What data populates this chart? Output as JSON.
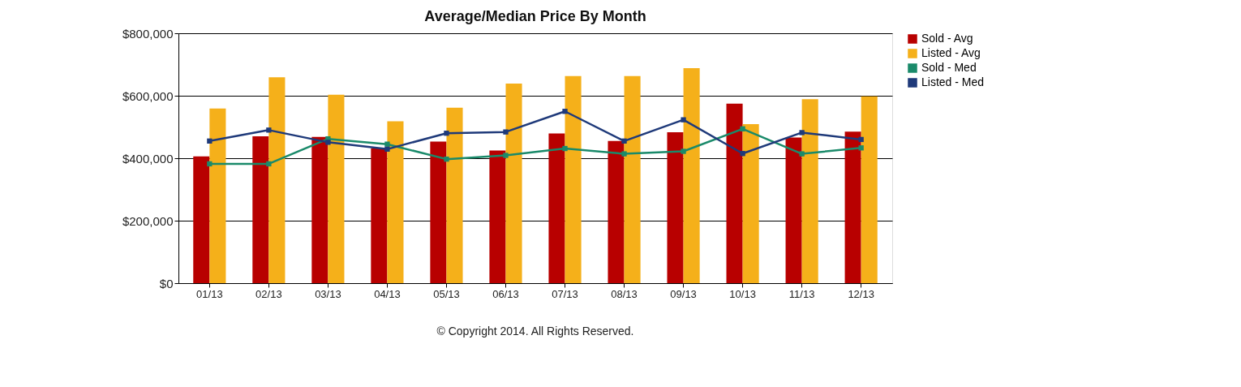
{
  "chart_data": {
    "type": "bar",
    "title": "Average/Median Price By Month",
    "categories": [
      "01/13",
      "02/13",
      "03/13",
      "04/13",
      "05/13",
      "06/13",
      "07/13",
      "08/13",
      "09/13",
      "10/13",
      "11/13",
      "12/13"
    ],
    "series": [
      {
        "name": "Sold - Avg",
        "color": "#b80000",
        "values": [
          406000,
          470000,
          468000,
          432000,
          453000,
          425000,
          479000,
          455000,
          483000,
          575000,
          466000,
          485000
        ]
      },
      {
        "name": "Listed - Avg",
        "color": "#f5b01a",
        "values": [
          559000,
          659000,
          603000,
          518000,
          562000,
          639000,
          663000,
          663000,
          688000,
          509000,
          589000,
          598000
        ]
      },
      {
        "name": "Sold - Med",
        "type": "line",
        "color": "#1a8a6a",
        "values": [
          382000,
          382000,
          462000,
          445000,
          397000,
          409000,
          431000,
          414000,
          422000,
          494000,
          414000,
          433000
        ]
      },
      {
        "name": "Listed - Med",
        "type": "line",
        "color": "#1f3a7a",
        "values": [
          455000,
          490000,
          451000,
          429000,
          480000,
          484000,
          550000,
          455000,
          523000,
          415000,
          482000,
          460000
        ]
      }
    ],
    "ylim": [
      0,
      800000
    ],
    "yticks": [
      {
        "value": 0,
        "label": "$0"
      },
      {
        "value": 200000,
        "label": "$200,000"
      },
      {
        "value": 400000,
        "label": "$400,000"
      },
      {
        "value": 600000,
        "label": "$600,000"
      },
      {
        "value": 800000,
        "label": "$800,000"
      }
    ],
    "grid": "y",
    "legend": "top right",
    "marker": "square",
    "annotations": [
      "© Copyright 2014.  All Rights Reserved."
    ]
  }
}
